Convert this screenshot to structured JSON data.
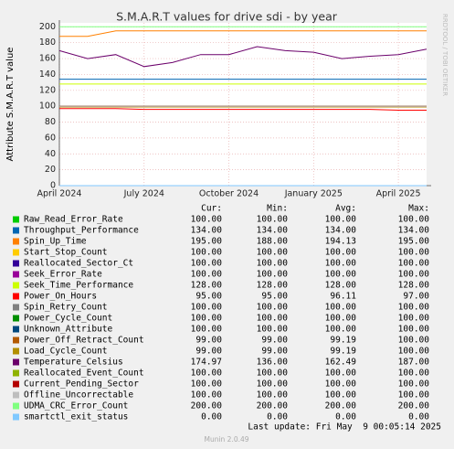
{
  "chart_data": {
    "type": "line",
    "title": "S.M.A.R.T values for drive sdi - by year",
    "y_label": "Attribute S.M.A.R.T value",
    "side_text": "RRDTOOL / TOBI OETIKER",
    "last_update": "Last update: Fri May  9 00:05:14 2025",
    "footer": "Munin 2.0.49",
    "x": [
      "2024-04",
      "2024-05",
      "2024-06",
      "2024-07",
      "2024-08",
      "2024-09",
      "2024-10",
      "2024-11",
      "2024-12",
      "2025-01",
      "2025-02",
      "2025-03",
      "2025-04",
      "2025-05"
    ],
    "xlim": [
      "2024-04",
      "2025-05"
    ],
    "xticks": [
      {
        "value": "2024-04",
        "label": "April 2024"
      },
      {
        "value": "2024-07",
        "label": "July 2024"
      },
      {
        "value": "2024-10",
        "label": "October 2024"
      },
      {
        "value": "2025-01",
        "label": "January 2025"
      },
      {
        "value": "2025-04",
        "label": "April 2025"
      }
    ],
    "ylim": [
      0,
      205
    ],
    "yticks": [
      0,
      20,
      40,
      60,
      80,
      100,
      120,
      140,
      160,
      180,
      200
    ],
    "grid": true,
    "legend_columns": [
      "Cur:",
      "Min:",
      "Avg:",
      "Max:"
    ],
    "series": [
      {
        "name": "Raw_Read_Error_Rate",
        "color": "#00cc00",
        "values": [
          100,
          100,
          100,
          100,
          100,
          100,
          100,
          100,
          100,
          100,
          100,
          100,
          100,
          100
        ],
        "stats": [
          "100.00",
          "100.00",
          "100.00",
          "100.00"
        ]
      },
      {
        "name": "Throughput_Performance",
        "color": "#0066b3",
        "values": [
          134,
          134,
          134,
          134,
          134,
          134,
          134,
          134,
          134,
          134,
          134,
          134,
          134,
          134
        ],
        "stats": [
          "134.00",
          "134.00",
          "134.00",
          "134.00"
        ]
      },
      {
        "name": "Spin_Up_Time",
        "color": "#ff8000",
        "values": [
          188,
          188,
          195,
          195,
          195,
          195,
          195,
          195,
          195,
          195,
          195,
          195,
          195,
          195
        ],
        "stats": [
          "195.00",
          "188.00",
          "194.13",
          "195.00"
        ]
      },
      {
        "name": "Start_Stop_Count",
        "color": "#ffcc00",
        "values": [
          100,
          100,
          100,
          100,
          100,
          100,
          100,
          100,
          100,
          100,
          100,
          100,
          100,
          100
        ],
        "stats": [
          "100.00",
          "100.00",
          "100.00",
          "100.00"
        ]
      },
      {
        "name": "Reallocated_Sector_Ct",
        "color": "#330099",
        "values": [
          100,
          100,
          100,
          100,
          100,
          100,
          100,
          100,
          100,
          100,
          100,
          100,
          100,
          100
        ],
        "stats": [
          "100.00",
          "100.00",
          "100.00",
          "100.00"
        ]
      },
      {
        "name": "Seek_Error_Rate",
        "color": "#990099",
        "values": [
          100,
          100,
          100,
          100,
          100,
          100,
          100,
          100,
          100,
          100,
          100,
          100,
          100,
          100
        ],
        "stats": [
          "100.00",
          "100.00",
          "100.00",
          "100.00"
        ]
      },
      {
        "name": "Seek_Time_Performance",
        "color": "#ccff00",
        "values": [
          128,
          128,
          128,
          128,
          128,
          128,
          128,
          128,
          128,
          128,
          128,
          128,
          128,
          128
        ],
        "stats": [
          "128.00",
          "128.00",
          "128.00",
          "128.00"
        ]
      },
      {
        "name": "Power_On_Hours",
        "color": "#ff0000",
        "values": [
          97,
          97,
          97,
          96,
          96,
          96,
          96,
          96,
          96,
          96,
          96,
          96,
          95,
          95
        ],
        "stats": [
          "95.00",
          "95.00",
          "96.11",
          "97.00"
        ]
      },
      {
        "name": "Spin_Retry_Count",
        "color": "#808080",
        "values": [
          100,
          100,
          100,
          100,
          100,
          100,
          100,
          100,
          100,
          100,
          100,
          100,
          100,
          100
        ],
        "stats": [
          "100.00",
          "100.00",
          "100.00",
          "100.00"
        ]
      },
      {
        "name": "Power_Cycle_Count",
        "color": "#008f00",
        "values": [
          100,
          100,
          100,
          100,
          100,
          100,
          100,
          100,
          100,
          100,
          100,
          100,
          100,
          100
        ],
        "stats": [
          "100.00",
          "100.00",
          "100.00",
          "100.00"
        ]
      },
      {
        "name": "Unknown_Attribute",
        "color": "#00487d",
        "values": [
          100,
          100,
          100,
          100,
          100,
          100,
          100,
          100,
          100,
          100,
          100,
          100,
          100,
          100
        ],
        "stats": [
          "100.00",
          "100.00",
          "100.00",
          "100.00"
        ]
      },
      {
        "name": "Power_Off_Retract_Count",
        "color": "#b35a00",
        "values": [
          99,
          99,
          99,
          99,
          99,
          99,
          99,
          99,
          99,
          99,
          99,
          99,
          99,
          99
        ],
        "stats": [
          "99.00",
          "99.00",
          "99.19",
          "100.00"
        ]
      },
      {
        "name": "Load_Cycle_Count",
        "color": "#b38f00",
        "values": [
          99,
          99,
          99,
          99,
          99,
          99,
          99,
          99,
          99,
          99,
          99,
          99,
          99,
          99
        ],
        "stats": [
          "99.00",
          "99.00",
          "99.19",
          "100.00"
        ]
      },
      {
        "name": "Temperature_Celsius",
        "color": "#6b006b",
        "values": [
          170,
          160,
          165,
          150,
          155,
          165,
          165,
          175,
          170,
          168,
          160,
          163,
          165,
          172
        ],
        "stats": [
          "174.97",
          "136.00",
          "162.49",
          "187.00"
        ]
      },
      {
        "name": "Reallocated_Event_Count",
        "color": "#8fb300",
        "values": [
          100,
          100,
          100,
          100,
          100,
          100,
          100,
          100,
          100,
          100,
          100,
          100,
          100,
          100
        ],
        "stats": [
          "100.00",
          "100.00",
          "100.00",
          "100.00"
        ]
      },
      {
        "name": "Current_Pending_Sector",
        "color": "#b30000",
        "values": [
          100,
          100,
          100,
          100,
          100,
          100,
          100,
          100,
          100,
          100,
          100,
          100,
          100,
          100
        ],
        "stats": [
          "100.00",
          "100.00",
          "100.00",
          "100.00"
        ]
      },
      {
        "name": "Offline_Uncorrectable",
        "color": "#bebebe",
        "values": [
          100,
          100,
          100,
          100,
          100,
          100,
          100,
          100,
          100,
          100,
          100,
          100,
          100,
          100
        ],
        "stats": [
          "100.00",
          "100.00",
          "100.00",
          "100.00"
        ]
      },
      {
        "name": "UDMA_CRC_Error_Count",
        "color": "#80ff80",
        "values": [
          200,
          200,
          200,
          200,
          200,
          200,
          200,
          200,
          200,
          200,
          200,
          200,
          200,
          200
        ],
        "stats": [
          "200.00",
          "200.00",
          "200.00",
          "200.00"
        ]
      },
      {
        "name": "smartctl_exit_status",
        "color": "#80c9ff",
        "values": [
          0,
          0,
          0,
          0,
          0,
          0,
          0,
          0,
          0,
          0,
          0,
          0,
          0,
          0
        ],
        "stats": [
          "0.00",
          "0.00",
          "0.00",
          "0.00"
        ]
      }
    ]
  }
}
